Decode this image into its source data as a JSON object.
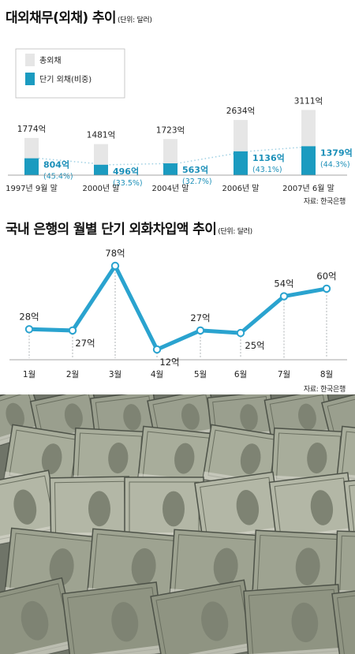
{
  "chart_data": [
    {
      "type": "bar",
      "title": "대외채무(외채) 추이",
      "unit": "(단위: 달러)",
      "source": "자료: 한국은행",
      "legend_placement": "top-left",
      "categories": [
        "1997년 9월 말",
        "2000년 말",
        "2004년 말",
        "2006년 말",
        "2007년 6월 말"
      ],
      "series": [
        {
          "name": "총외채",
          "color": "#e6e6e6",
          "values": [
            1774,
            1481,
            1723,
            2634,
            3111
          ],
          "labels": [
            "1774억",
            "1481억",
            "1723억",
            "2634억",
            "3111억"
          ]
        },
        {
          "name": "단기 외채(비중)",
          "color": "#1b9bc0",
          "values": [
            804,
            496,
            563,
            1136,
            1379
          ],
          "labels": [
            "804억",
            "496억",
            "563억",
            "1136억",
            "1379억"
          ],
          "shares": [
            "(45.4%)",
            "(33.5%)",
            "(32.7%)",
            "(43.1%)",
            "(44.3%)"
          ]
        }
      ],
      "ylim": [
        0,
        3300
      ],
      "grid": false
    },
    {
      "type": "line",
      "title": "국내 은행의 월별 단기 외화차입액 추이",
      "unit": "(단위: 달러)",
      "source": "자료: 한국은행",
      "x": [
        "1월",
        "2월",
        "3월",
        "4월",
        "5월",
        "6월",
        "7월",
        "8월"
      ],
      "series": [
        {
          "color": "#2aa3cf",
          "values": [
            28,
            27,
            78,
            12,
            27,
            25,
            54,
            60
          ],
          "labels": [
            "28억",
            "27억",
            "78억",
            "12억",
            "27억",
            "25억",
            "54억",
            "60억"
          ]
        }
      ],
      "ylim": [
        0,
        85
      ],
      "grid": false
    }
  ],
  "photo": {
    "description_icon": "stacks-of-hundred-dollar-bills"
  }
}
